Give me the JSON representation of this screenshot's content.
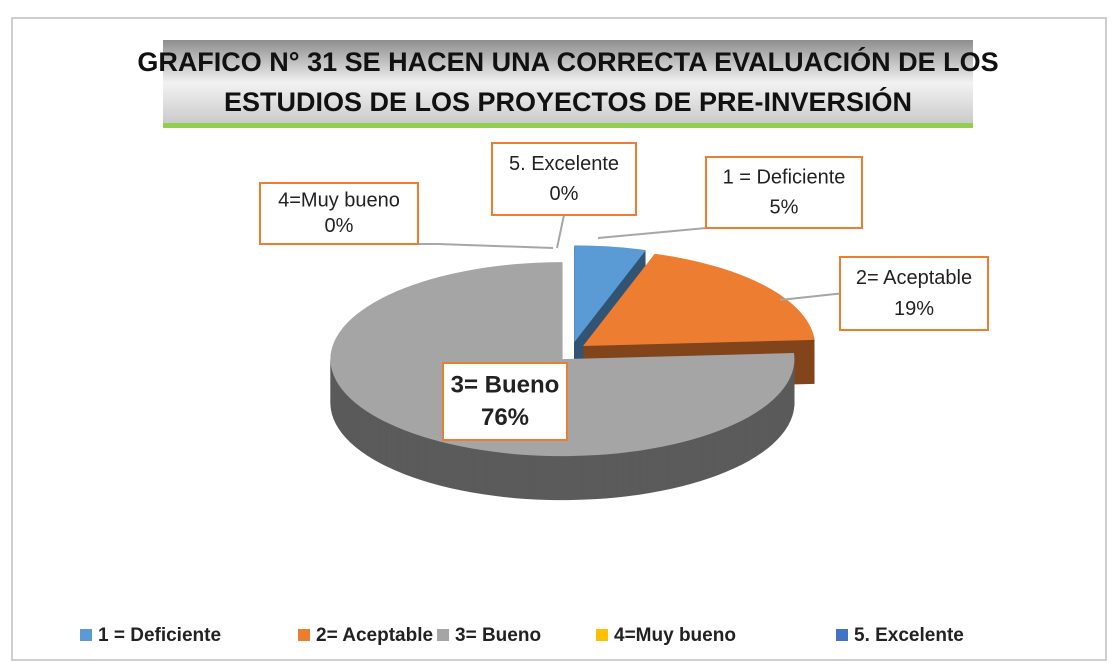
{
  "chart_data": {
    "type": "pie",
    "title": [
      "GRAFICO N° 31 SE HACEN UNA CORRECTA EVALUACIÓN DE LOS",
      "ESTUDIOS DE LOS PROYECTOS DE PRE-INVERSIÓN"
    ],
    "categories": [
      "1 = Deficiente",
      "2= Aceptable",
      "3= Bueno",
      "4=Muy bueno",
      "5. Excelente"
    ],
    "values": [
      5,
      19,
      76,
      0,
      0
    ],
    "value_labels": [
      "5%",
      "19%",
      "76%",
      "0%",
      "0%"
    ],
    "colors": [
      "#5b9bd5",
      "#ed7d31",
      "#a5a5a5",
      "#ffc000",
      "#4472c4"
    ],
    "legend": "bottom"
  }
}
